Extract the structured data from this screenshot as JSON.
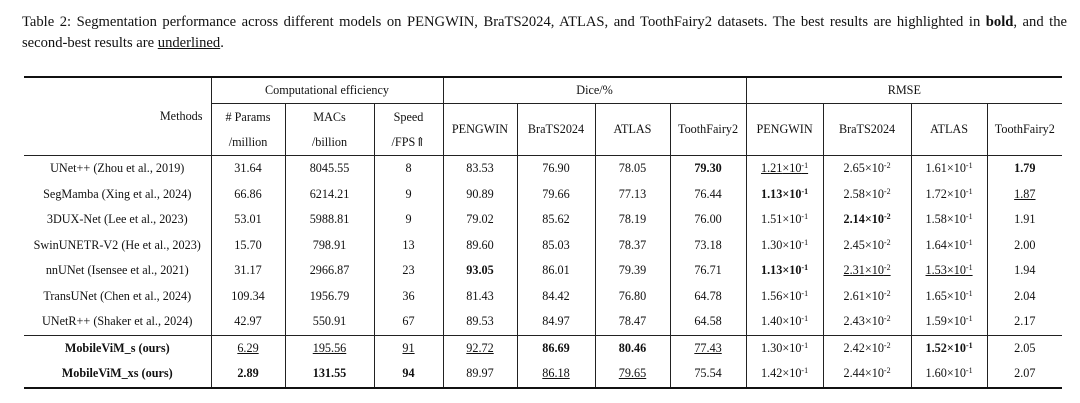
{
  "caption": {
    "text_a": "Table 2: Segmentation performance across different models on PENGWIN, BraTS2024, ATLAS, and ToothFairy2 datasets. The best results are highlighted in ",
    "bold_word": "bold",
    "text_b": ", and the second-best results are ",
    "underlined_word": "underlined",
    "text_c": "."
  },
  "header": {
    "methods": "Methods",
    "groups": [
      "Computational efficiency",
      "Dice/%",
      "RMSE"
    ],
    "comp_cols": [
      {
        "line1": "# Params",
        "line2": "/million"
      },
      {
        "line1": "MACs",
        "line2": "/billion"
      },
      {
        "line1": "Speed",
        "line2": "/FPS⇑"
      }
    ],
    "datasets": [
      "PENGWIN",
      "BraTS2024",
      "ATLAS",
      "ToothFairy2"
    ]
  },
  "rows": [
    {
      "method": "UNet++ (Zhou et al., 2019)",
      "params": "31.64",
      "macs": "8045.55",
      "speed": "8",
      "dice": [
        "83.53",
        "76.90",
        "78.05",
        "79.30"
      ],
      "rmse": [
        {
          "m": "1.21",
          "e": "-1"
        },
        {
          "m": "2.65",
          "e": "-2"
        },
        {
          "m": "1.61",
          "e": "-1"
        },
        {
          "m": "1.79",
          "e": ""
        }
      ]
    },
    {
      "method": "SegMamba (Xing et al., 2024)",
      "params": "66.86",
      "macs": "6214.21",
      "speed": "9",
      "dice": [
        "90.89",
        "79.66",
        "77.13",
        "76.44"
      ],
      "rmse": [
        {
          "m": "1.13",
          "e": "-1"
        },
        {
          "m": "2.58",
          "e": "-2"
        },
        {
          "m": "1.72",
          "e": "-1"
        },
        {
          "m": "1.87",
          "e": ""
        }
      ]
    },
    {
      "method": "3DUX-Net (Lee et al., 2023)",
      "params": "53.01",
      "macs": "5988.81",
      "speed": "9",
      "dice": [
        "79.02",
        "85.62",
        "78.19",
        "76.00"
      ],
      "rmse": [
        {
          "m": "1.51",
          "e": "-1"
        },
        {
          "m": "2.14",
          "e": "-2"
        },
        {
          "m": "1.58",
          "e": "-1"
        },
        {
          "m": "1.91",
          "e": ""
        }
      ]
    },
    {
      "method": "SwinUNETR-V2 (He et al., 2023)",
      "params": "15.70",
      "macs": "798.91",
      "speed": "13",
      "dice": [
        "89.60",
        "85.03",
        "78.37",
        "73.18"
      ],
      "rmse": [
        {
          "m": "1.30",
          "e": "-1"
        },
        {
          "m": "2.45",
          "e": "-2"
        },
        {
          "m": "1.64",
          "e": "-1"
        },
        {
          "m": "2.00",
          "e": ""
        }
      ]
    },
    {
      "method": "nnUNet (Isensee et al., 2021)",
      "params": "31.17",
      "macs": "2966.87",
      "speed": "23",
      "dice": [
        "93.05",
        "86.01",
        "79.39",
        "76.71"
      ],
      "rmse": [
        {
          "m": "1.13",
          "e": "-1"
        },
        {
          "m": "2.31",
          "e": "-2"
        },
        {
          "m": "1.53",
          "e": "-1"
        },
        {
          "m": "1.94",
          "e": ""
        }
      ]
    },
    {
      "method": "TransUNet (Chen et al., 2024)",
      "params": "109.34",
      "macs": "1956.79",
      "speed": "36",
      "dice": [
        "81.43",
        "84.42",
        "76.80",
        "64.78"
      ],
      "rmse": [
        {
          "m": "1.56",
          "e": "-1"
        },
        {
          "m": "2.61",
          "e": "-2"
        },
        {
          "m": "1.65",
          "e": "-1"
        },
        {
          "m": "2.04",
          "e": ""
        }
      ]
    },
    {
      "method": "UNetR++ (Shaker et al., 2024)",
      "params": "42.97",
      "macs": "550.91",
      "speed": "67",
      "dice": [
        "89.53",
        "84.97",
        "78.47",
        "64.58"
      ],
      "rmse": [
        {
          "m": "1.40",
          "e": "-1"
        },
        {
          "m": "2.43",
          "e": "-2"
        },
        {
          "m": "1.59",
          "e": "-1"
        },
        {
          "m": "2.17",
          "e": ""
        }
      ]
    },
    {
      "method": "MobileViM_s (ours)",
      "params": "6.29",
      "macs": "195.56",
      "speed": "91",
      "dice": [
        "92.72",
        "86.69",
        "80.46",
        "77.43"
      ],
      "rmse": [
        {
          "m": "1.30",
          "e": "-1"
        },
        {
          "m": "2.42",
          "e": "-2"
        },
        {
          "m": "1.52",
          "e": "-1"
        },
        {
          "m": "2.05",
          "e": ""
        }
      ]
    },
    {
      "method": "MobileViM_xs (ours)",
      "params": "2.89",
      "macs": "131.55",
      "speed": "94",
      "dice": [
        "89.97",
        "86.18",
        "79.65",
        "75.54"
      ],
      "rmse": [
        {
          "m": "1.42",
          "e": "-1"
        },
        {
          "m": "2.44",
          "e": "-2"
        },
        {
          "m": "1.60",
          "e": "-1"
        },
        {
          "m": "2.07",
          "e": ""
        }
      ]
    }
  ],
  "bold_cells": [
    "0.dice.3",
    "0.rmse.3",
    "1.rmse.0",
    "2.rmse.1",
    "4.dice.0",
    "4.rmse.0",
    "7.method",
    "7.dice.1",
    "7.dice.2",
    "7.rmse.2",
    "8.method",
    "8.params",
    "8.macs",
    "8.speed"
  ],
  "underline_cells": [
    "0.rmse.0",
    "1.rmse.3",
    "4.rmse.1",
    "4.rmse.2",
    "7.params",
    "7.macs",
    "7.speed",
    "7.dice.0",
    "7.dice.3",
    "8.dice.1",
    "8.dice.2"
  ]
}
